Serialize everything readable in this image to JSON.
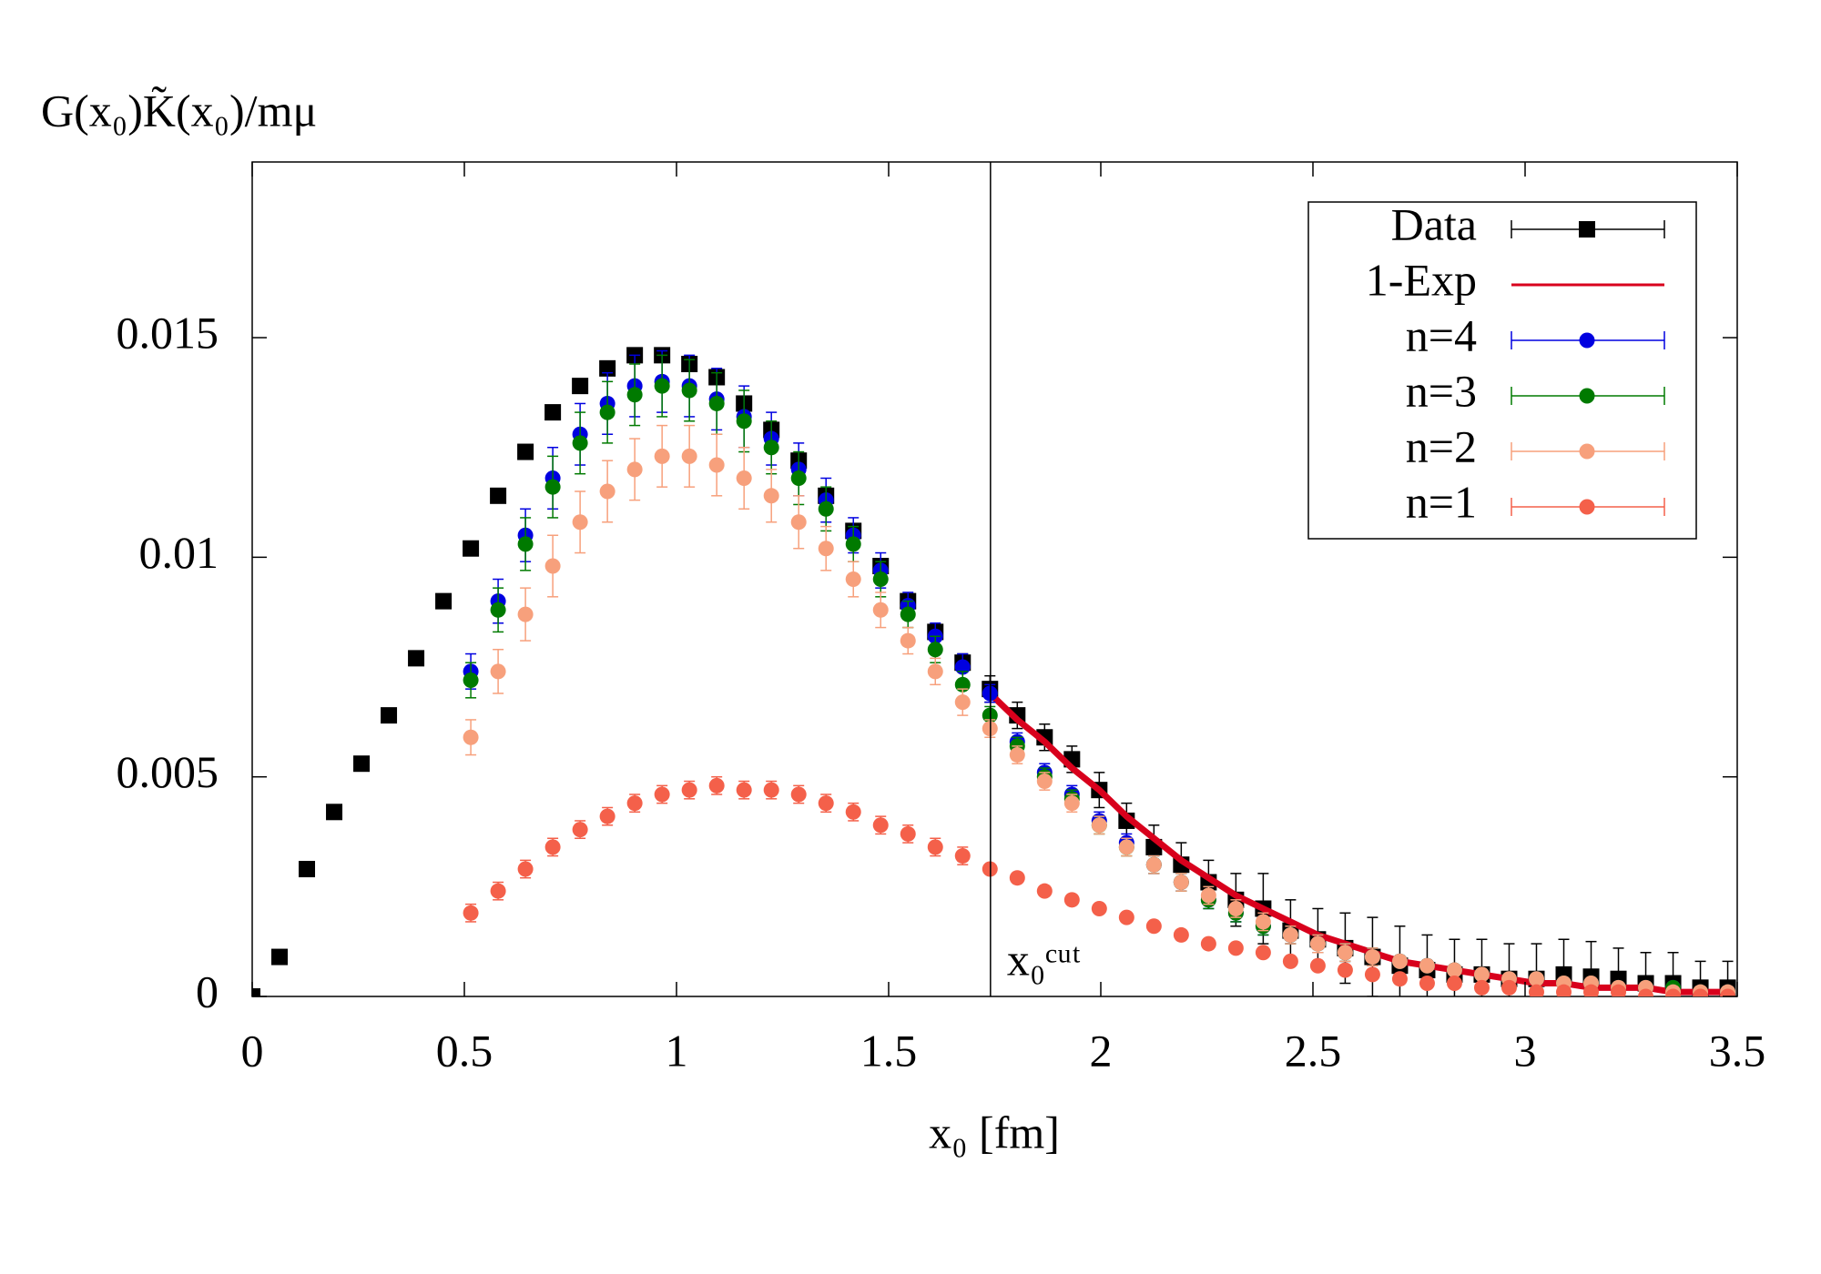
{
  "chart_data": {
    "type": "scatter",
    "ylabel": "G(x₀)K̃(x₀)/mμ",
    "xlabel": "x₀ [fm]",
    "annotation": {
      "text": "x₀ᶜᵘᵗ",
      "x": 1.74
    },
    "xlim": [
      0,
      3.5
    ],
    "xticks": [
      0,
      0.5,
      1,
      1.5,
      2,
      2.5,
      3,
      3.5
    ],
    "ylim": [
      0,
      0.019
    ],
    "yticks": [
      0,
      0.005,
      0.01,
      0.015
    ],
    "grid": false,
    "legend": "top right",
    "x": [
      0,
      0.0644,
      0.1288,
      0.1932,
      0.2576,
      0.322,
      0.3864,
      0.4508,
      0.5152,
      0.5796,
      0.644,
      0.7084,
      0.7728,
      0.8372,
      0.9016,
      0.966,
      1.0304,
      1.0948,
      1.1592,
      1.2236,
      1.288,
      1.3524,
      1.4168,
      1.4812,
      1.5456,
      1.61,
      1.6744,
      1.7388,
      1.8032,
      1.8676,
      1.932,
      1.9964,
      2.0608,
      2.1252,
      2.1896,
      2.254,
      2.3184,
      2.3828,
      2.4472,
      2.5116,
      2.576,
      2.6404,
      2.7048,
      2.7692,
      2.8336,
      2.898,
      2.9624,
      3.0268,
      3.0912,
      3.1556,
      3.22,
      3.2844,
      3.3488,
      3.4132,
      3.4776
    ],
    "series": [
      {
        "name": "Data",
        "color": "#000000",
        "marker": "square",
        "values": [
          0,
          0.0009,
          0.0029,
          0.0042,
          0.0053,
          0.0064,
          0.0077,
          0.009,
          0.0102,
          0.0114,
          0.0124,
          0.0133,
          0.0139,
          0.0143,
          0.0146,
          0.0146,
          0.0144,
          0.0141,
          0.0135,
          0.0129,
          0.0122,
          0.0114,
          0.0106,
          0.0098,
          0.009,
          0.0083,
          0.0076,
          0.007,
          0.0064,
          0.0059,
          0.0054,
          0.0047,
          0.004,
          0.0034,
          0.003,
          0.0026,
          0.0022,
          0.002,
          0.0015,
          0.0013,
          0.0011,
          0.0009,
          0.0007,
          0.0006,
          0.0005,
          0.0005,
          0.0004,
          0.0004,
          0.0005,
          0.00045,
          0.0004,
          0.0003,
          0.0003,
          0.0002,
          0.0002
        ],
        "errors": [
          5e-05,
          5e-05,
          5e-05,
          5e-05,
          5e-05,
          5e-05,
          5e-05,
          5e-05,
          5e-05,
          5e-05,
          5e-05,
          5e-05,
          5e-05,
          5e-05,
          5e-05,
          5e-05,
          5e-05,
          5e-05,
          0.0001,
          0.0001,
          0.0001,
          0.0001,
          0.0001,
          0.0001,
          0.0001,
          0.00015,
          0.0002,
          0.0003,
          0.0003,
          0.0003,
          0.0003,
          0.0004,
          0.0004,
          0.0005,
          0.0005,
          0.0005,
          0.0006,
          0.0008,
          0.0007,
          0.0007,
          0.0008,
          0.0009,
          0.0009,
          0.0008,
          0.0008,
          0.0008,
          0.0008,
          0.0008,
          0.0008,
          0.0008,
          0.0007,
          0.0007,
          0.0007,
          0.0006,
          0.0006
        ]
      },
      {
        "name": "1-Exp",
        "color": "#d8001c",
        "marker": "line",
        "values": [
          null,
          null,
          null,
          null,
          null,
          null,
          null,
          null,
          null,
          null,
          null,
          null,
          null,
          null,
          null,
          null,
          null,
          null,
          null,
          null,
          null,
          null,
          null,
          null,
          null,
          null,
          null,
          0.0069,
          0.0063,
          0.0058,
          0.0052,
          0.0047,
          0.0041,
          0.0036,
          0.0031,
          0.0027,
          0.0023,
          0.002,
          0.0017,
          0.0014,
          0.0012,
          0.001,
          0.0008,
          0.0007,
          0.0006,
          0.0005,
          0.0004,
          0.0003,
          0.0003,
          0.0002,
          0.0002,
          0.0002,
          0.0001,
          0.0001,
          0.0001
        ]
      },
      {
        "name": "n=4",
        "color": "#0000e0",
        "marker": "circle",
        "values": [
          null,
          null,
          null,
          null,
          null,
          null,
          null,
          null,
          0.0074,
          0.009,
          0.0105,
          0.0118,
          0.0128,
          0.0135,
          0.0139,
          0.014,
          0.0139,
          0.0136,
          0.0132,
          0.0127,
          0.012,
          0.0113,
          0.0105,
          0.0097,
          0.0089,
          0.0082,
          0.0075,
          0.0069,
          0.0058,
          0.0051,
          0.0046,
          0.004,
          0.0035,
          0.003,
          0.0026,
          0.0022,
          0.0019,
          0.0016,
          0.0014,
          0.0012,
          0.001,
          0.0009,
          0.0008,
          0.0007,
          0.0006,
          0.0005,
          0.0004,
          0.0004,
          0.0003,
          0.0003,
          0.0002,
          0.0002,
          0.0002,
          0.0001,
          0.0001
        ],
        "errors": [
          null,
          null,
          null,
          null,
          null,
          null,
          null,
          null,
          0.0004,
          0.0005,
          0.0006,
          0.0007,
          0.0007,
          0.0007,
          0.0007,
          0.0007,
          0.0007,
          0.0007,
          0.0007,
          0.0006,
          0.0006,
          0.0005,
          0.0004,
          0.0004,
          0.0003,
          0.0003,
          0.0003,
          0.0002,
          0.0002,
          0.0002,
          0.0002,
          0.0002,
          0.0002,
          0.0002,
          0.0002,
          0.0002,
          0.0002,
          0.0002,
          0.0002,
          0.0002,
          0.0002,
          0.0002,
          0.0001,
          0.0001,
          0.0001,
          0.0001,
          0.0001,
          0.0001,
          0.0001,
          0.0001,
          0.0001,
          0.0001,
          0.0001,
          0.0001,
          0.0001
        ]
      },
      {
        "name": "n=3",
        "color": "#007a00",
        "marker": "circle",
        "values": [
          null,
          null,
          null,
          null,
          null,
          null,
          null,
          null,
          0.0072,
          0.0088,
          0.0103,
          0.0116,
          0.0126,
          0.0133,
          0.0137,
          0.0139,
          0.0138,
          0.0135,
          0.0131,
          0.0125,
          0.0118,
          0.0111,
          0.0103,
          0.0095,
          0.0087,
          0.0079,
          0.0071,
          0.0064,
          0.0057,
          0.005,
          0.0045,
          0.0039,
          0.0034,
          0.003,
          0.0026,
          0.0022,
          0.0019,
          0.0016,
          0.0014,
          0.0012,
          0.001,
          0.0009,
          0.0008,
          0.0007,
          0.0006,
          0.0005,
          0.0004,
          0.0004,
          0.0003,
          0.0003,
          0.0002,
          0.0002,
          0.0002,
          0.0001,
          0.0001
        ],
        "errors": [
          null,
          null,
          null,
          null,
          null,
          null,
          null,
          null,
          0.0004,
          0.0005,
          0.0006,
          0.0007,
          0.0007,
          0.0007,
          0.0007,
          0.0007,
          0.0007,
          0.0007,
          0.0007,
          0.0006,
          0.0006,
          0.0005,
          0.0004,
          0.0004,
          0.0003,
          0.0003,
          0.0003,
          0.0002,
          0.0002,
          0.0002,
          0.0002,
          0.0002,
          0.0002,
          0.0002,
          0.0002,
          0.0002,
          0.0002,
          0.0002,
          0.0002,
          0.0002,
          0.0002,
          0.0002,
          0.0001,
          0.0001,
          0.0001,
          0.0001,
          0.0001,
          0.0001,
          0.0001,
          0.0001,
          0.0001,
          0.0001,
          0.0001,
          0.0001,
          0.0001
        ]
      },
      {
        "name": "n=2",
        "color": "#f7a07c",
        "marker": "circle",
        "values": [
          null,
          null,
          null,
          null,
          null,
          null,
          null,
          null,
          0.0059,
          0.0074,
          0.0087,
          0.0098,
          0.0108,
          0.0115,
          0.012,
          0.0123,
          0.0123,
          0.0121,
          0.0118,
          0.0114,
          0.0108,
          0.0102,
          0.0095,
          0.0088,
          0.0081,
          0.0074,
          0.0067,
          0.0061,
          0.0055,
          0.0049,
          0.0044,
          0.0039,
          0.0034,
          0.003,
          0.0026,
          0.0023,
          0.002,
          0.0017,
          0.0014,
          0.0012,
          0.001,
          0.0009,
          0.0008,
          0.0007,
          0.0006,
          0.0005,
          0.0004,
          0.0004,
          0.0003,
          0.0003,
          0.0002,
          0.0002,
          0.0001,
          0.0001,
          0.0001
        ],
        "errors": [
          null,
          null,
          null,
          null,
          null,
          null,
          null,
          null,
          0.0004,
          0.0005,
          0.0006,
          0.0007,
          0.0007,
          0.0007,
          0.0007,
          0.0007,
          0.0007,
          0.0007,
          0.0007,
          0.0006,
          0.0006,
          0.0005,
          0.0004,
          0.0004,
          0.0003,
          0.0003,
          0.0003,
          0.0002,
          0.0002,
          0.0002,
          0.0002,
          0.0002,
          0.0002,
          0.0002,
          0.0002,
          0.0002,
          0.0002,
          0.0002,
          0.0002,
          0.0002,
          0.0002,
          0.0002,
          0.0001,
          0.0001,
          0.0001,
          0.0001,
          0.0001,
          0.0001,
          0.0001,
          0.0001,
          0.0001,
          0.0001,
          0.0001,
          0.0001,
          0.0001
        ]
      },
      {
        "name": "n=1",
        "color": "#f4604a",
        "marker": "circle",
        "values": [
          null,
          null,
          null,
          null,
          null,
          null,
          null,
          null,
          0.0019,
          0.0024,
          0.0029,
          0.0034,
          0.0038,
          0.0041,
          0.0044,
          0.0046,
          0.0047,
          0.0048,
          0.0047,
          0.0047,
          0.0046,
          0.0044,
          0.0042,
          0.0039,
          0.0037,
          0.0034,
          0.0032,
          0.0029,
          0.0027,
          0.0024,
          0.0022,
          0.002,
          0.0018,
          0.0016,
          0.0014,
          0.0012,
          0.0011,
          0.001,
          0.0008,
          0.0007,
          0.0006,
          0.0005,
          0.0004,
          0.0003,
          0.0003,
          0.0002,
          0.0002,
          0.0001,
          0.0001,
          0.0001,
          0.0001,
          0,
          0,
          0,
          0
        ],
        "errors": [
          null,
          null,
          null,
          null,
          null,
          null,
          null,
          null,
          0.0002,
          0.0002,
          0.0002,
          0.0002,
          0.0002,
          0.0002,
          0.0002,
          0.0002,
          0.0002,
          0.0002,
          0.0002,
          0.0002,
          0.0002,
          0.0002,
          0.0002,
          0.0002,
          0.0002,
          0.0002,
          0.0002,
          0.0001,
          0.0001,
          0.0001,
          0.0001,
          0.0001,
          0.0001,
          0.0001,
          0.0001,
          0.0001,
          0.0001,
          0.0001,
          0.0001,
          0.0001,
          0.0001,
          0.0001,
          0.0001,
          0.0001,
          0.0001,
          0.0001,
          0.0001,
          0.0001,
          0.0001,
          0.0001,
          0.0001,
          0.0001,
          0.0001,
          0.0001,
          0.0001
        ]
      }
    ]
  }
}
